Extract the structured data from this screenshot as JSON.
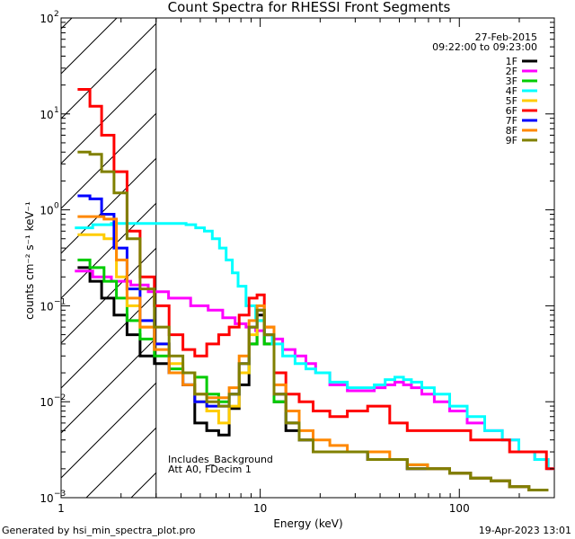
{
  "chart_data": {
    "type": "line",
    "title": "Count Spectra for RHESSI Front Segments",
    "xlabel": "Energy (keV)",
    "ylabel": "counts cm⁻² s⁻¹ keV⁻¹",
    "xscale": "log",
    "yscale": "log",
    "xlim": [
      1,
      300
    ],
    "ylim": [
      0.001,
      100
    ],
    "x_ticks": [
      {
        "value": 1,
        "label": "1"
      },
      {
        "value": 10,
        "label": "10"
      },
      {
        "value": 100,
        "label": "100"
      }
    ],
    "y_ticks": [
      {
        "value": 0.001,
        "base": "10",
        "exp": "−3"
      },
      {
        "value": 0.01,
        "base": "10",
        "exp": "−2"
      },
      {
        "value": 0.1,
        "base": "10",
        "exp": "−1"
      },
      {
        "value": 1,
        "base": "10",
        "exp": "0"
      },
      {
        "value": 10,
        "base": "10",
        "exp": "1"
      },
      {
        "value": 100,
        "base": "10",
        "exp": "2"
      }
    ],
    "shaded_region": {
      "x_range": [
        1,
        3
      ],
      "style": "diagonal hatch",
      "meaning": "excluded low-energy range"
    },
    "date": "27-Feb-2015",
    "time_range": "09:22:00 to 09:23:00",
    "annotations": [
      "Includes_Background",
      "Att A0, FDecim 1"
    ],
    "legend_position": "top-right",
    "series": [
      {
        "name": "1F",
        "color": "#000000",
        "x": [
          1.3,
          1.5,
          1.7,
          2.0,
          2.3,
          2.7,
          3.2,
          3.8,
          4.4,
          5.0,
          5.8,
          6.6,
          7.4,
          8.3,
          9.3,
          10.0,
          11.0,
          12.5,
          14.5,
          17,
          20,
          25,
          30,
          40,
          50,
          60,
          80,
          100,
          130,
          160,
          200,
          250
        ],
        "y": [
          0.25,
          0.18,
          0.12,
          0.08,
          0.05,
          0.03,
          0.025,
          0.02,
          0.015,
          0.006,
          0.005,
          0.0045,
          0.0085,
          0.015,
          0.04,
          0.08,
          0.04,
          0.01,
          0.005,
          0.004,
          0.003,
          0.003,
          0.003,
          0.0025,
          0.0025,
          0.002,
          0.002,
          0.0018,
          0.0016,
          0.0015,
          0.0013,
          0.0012
        ]
      },
      {
        "name": "2F",
        "color": "#ff00ff",
        "x": [
          1.3,
          1.6,
          2.0,
          2.5,
          3.0,
          4.0,
          5.0,
          6.0,
          7.0,
          8.0,
          9.0,
          10.0,
          11.0,
          12,
          14,
          16,
          18,
          20,
          25,
          30,
          35,
          40,
          45,
          50,
          55,
          60,
          70,
          80,
          100,
          120,
          150,
          180,
          220,
          260,
          300
        ],
        "y": [
          0.23,
          0.2,
          0.18,
          0.165,
          0.14,
          0.12,
          0.1,
          0.09,
          0.075,
          0.065,
          0.06,
          0.055,
          0.05,
          0.045,
          0.035,
          0.03,
          0.025,
          0.02,
          0.015,
          0.013,
          0.013,
          0.014,
          0.015,
          0.016,
          0.015,
          0.014,
          0.012,
          0.01,
          0.008,
          0.006,
          0.005,
          0.004,
          0.003,
          0.0025,
          0.002
        ]
      },
      {
        "name": "3F",
        "color": "#00cc00",
        "x": [
          1.3,
          1.5,
          1.8,
          2.0,
          2.3,
          2.7,
          3.2,
          3.8,
          4.4,
          5.0,
          5.8,
          6.6,
          7.4,
          8.3,
          9.3,
          10.0,
          11.0,
          12.5,
          14.5,
          17,
          20,
          25,
          30,
          40,
          50,
          60,
          80,
          100,
          130,
          160,
          200,
          250
        ],
        "y": [
          0.3,
          0.25,
          0.18,
          0.12,
          0.07,
          0.045,
          0.03,
          0.022,
          0.02,
          0.018,
          0.012,
          0.01,
          0.012,
          0.02,
          0.04,
          0.07,
          0.04,
          0.01,
          0.006,
          0.004,
          0.003,
          0.003,
          0.003,
          0.0025,
          0.0025,
          0.0022,
          0.002,
          0.0018,
          0.0016,
          0.0015,
          0.0013,
          0.0012
        ]
      },
      {
        "name": "4F",
        "color": "#00ffff",
        "x": [
          1.3,
          1.6,
          2.0,
          2.5,
          3.0,
          3.5,
          4.0,
          4.5,
          5.0,
          5.5,
          6.0,
          6.5,
          7.0,
          7.5,
          8.0,
          9.0,
          10.0,
          11.0,
          12,
          14,
          16,
          18,
          20,
          25,
          30,
          35,
          40,
          45,
          50,
          55,
          60,
          70,
          80,
          100,
          120,
          150,
          180,
          220,
          260,
          300
        ],
        "y": [
          0.65,
          0.7,
          0.72,
          0.72,
          0.72,
          0.72,
          0.72,
          0.7,
          0.65,
          0.6,
          0.5,
          0.4,
          0.3,
          0.22,
          0.16,
          0.1,
          0.07,
          0.05,
          0.04,
          0.03,
          0.025,
          0.022,
          0.02,
          0.016,
          0.014,
          0.014,
          0.015,
          0.017,
          0.018,
          0.017,
          0.016,
          0.014,
          0.012,
          0.009,
          0.007,
          0.005,
          0.004,
          0.003,
          0.0025,
          0.002
        ]
      },
      {
        "name": "5F",
        "color": "#ffcc00",
        "x": [
          1.3,
          1.5,
          1.8,
          2.0,
          2.3,
          2.7,
          3.2,
          3.8,
          4.4,
          5.0,
          5.8,
          6.6,
          7.4,
          8.3,
          9.3,
          10.0,
          11.0,
          12.5,
          14.5,
          17,
          20,
          25,
          30,
          40,
          50,
          60,
          80,
          100,
          130,
          160,
          200,
          250
        ],
        "y": [
          0.55,
          0.55,
          0.5,
          0.2,
          0.1,
          0.06,
          0.04,
          0.025,
          0.02,
          0.01,
          0.008,
          0.006,
          0.009,
          0.02,
          0.05,
          0.09,
          0.05,
          0.012,
          0.006,
          0.004,
          0.003,
          0.003,
          0.003,
          0.0025,
          0.0025,
          0.002,
          0.002,
          0.0018,
          0.0016,
          0.0015,
          0.0013,
          0.0012
        ]
      },
      {
        "name": "6F",
        "color": "#ff0000",
        "x": [
          1.3,
          1.5,
          1.7,
          2.0,
          2.3,
          2.7,
          3.2,
          3.8,
          4.4,
          5.0,
          5.8,
          6.6,
          7.4,
          8.3,
          9.3,
          10.0,
          11.0,
          12.5,
          14.5,
          17,
          20,
          25,
          30,
          40,
          50,
          60,
          80,
          100,
          130,
          160,
          200,
          250,
          300
        ],
        "y": [
          18,
          12,
          6,
          2.5,
          0.6,
          0.2,
          0.1,
          0.05,
          0.035,
          0.03,
          0.04,
          0.05,
          0.06,
          0.08,
          0.12,
          0.13,
          0.06,
          0.02,
          0.012,
          0.01,
          0.008,
          0.007,
          0.008,
          0.009,
          0.006,
          0.005,
          0.005,
          0.005,
          0.004,
          0.004,
          0.003,
          0.003,
          0.002
        ]
      },
      {
        "name": "7F",
        "color": "#0000ff",
        "x": [
          1.3,
          1.5,
          1.7,
          2.0,
          2.3,
          2.7,
          3.2,
          3.8,
          4.4,
          5.0,
          5.8,
          6.6,
          7.4,
          8.3,
          9.3,
          10.0,
          11.0,
          12.5,
          14.5,
          17,
          20,
          25,
          30,
          40,
          50,
          60,
          80,
          100,
          130,
          160,
          200,
          250
        ],
        "y": [
          1.4,
          1.3,
          0.9,
          0.4,
          0.15,
          0.07,
          0.04,
          0.02,
          0.015,
          0.01,
          0.009,
          0.009,
          0.012,
          0.025,
          0.06,
          0.09,
          0.05,
          0.012,
          0.006,
          0.004,
          0.003,
          0.003,
          0.003,
          0.0025,
          0.0025,
          0.002,
          0.002,
          0.0018,
          0.0016,
          0.0015,
          0.0013,
          0.0012
        ]
      },
      {
        "name": "8F",
        "color": "#ff8800",
        "x": [
          1.3,
          1.5,
          1.8,
          2.0,
          2.3,
          2.7,
          3.2,
          3.8,
          4.4,
          5.0,
          5.8,
          6.6,
          7.4,
          8.3,
          9.3,
          10.0,
          11.0,
          12.5,
          14.5,
          17,
          20,
          25,
          30,
          40,
          50,
          60,
          80,
          100,
          130,
          160,
          200,
          250
        ],
        "y": [
          0.85,
          0.85,
          0.8,
          0.3,
          0.12,
          0.06,
          0.035,
          0.02,
          0.015,
          0.012,
          0.011,
          0.011,
          0.014,
          0.03,
          0.07,
          0.1,
          0.06,
          0.015,
          0.008,
          0.005,
          0.004,
          0.0035,
          0.003,
          0.003,
          0.0025,
          0.0022,
          0.002,
          0.0018,
          0.0016,
          0.0015,
          0.0013,
          0.0012
        ]
      },
      {
        "name": "9F",
        "color": "#808000",
        "x": [
          1.3,
          1.5,
          1.7,
          2.0,
          2.3,
          2.7,
          3.2,
          3.8,
          4.4,
          5.0,
          5.8,
          6.6,
          7.4,
          8.3,
          9.3,
          10.0,
          11.0,
          12.5,
          14.5,
          17,
          20,
          25,
          30,
          40,
          50,
          60,
          80,
          100,
          130,
          160,
          200,
          250
        ],
        "y": [
          4.0,
          3.8,
          2.5,
          1.5,
          0.5,
          0.15,
          0.06,
          0.03,
          0.02,
          0.012,
          0.01,
          0.009,
          0.012,
          0.025,
          0.06,
          0.09,
          0.05,
          0.012,
          0.006,
          0.004,
          0.003,
          0.003,
          0.003,
          0.0025,
          0.0025,
          0.002,
          0.002,
          0.0018,
          0.0016,
          0.0015,
          0.0013,
          0.0012
        ]
      }
    ]
  },
  "footer": {
    "generated_by": "Generated by hsi_min_spectra_plot.pro",
    "timestamp": "19-Apr-2023 13:01"
  }
}
